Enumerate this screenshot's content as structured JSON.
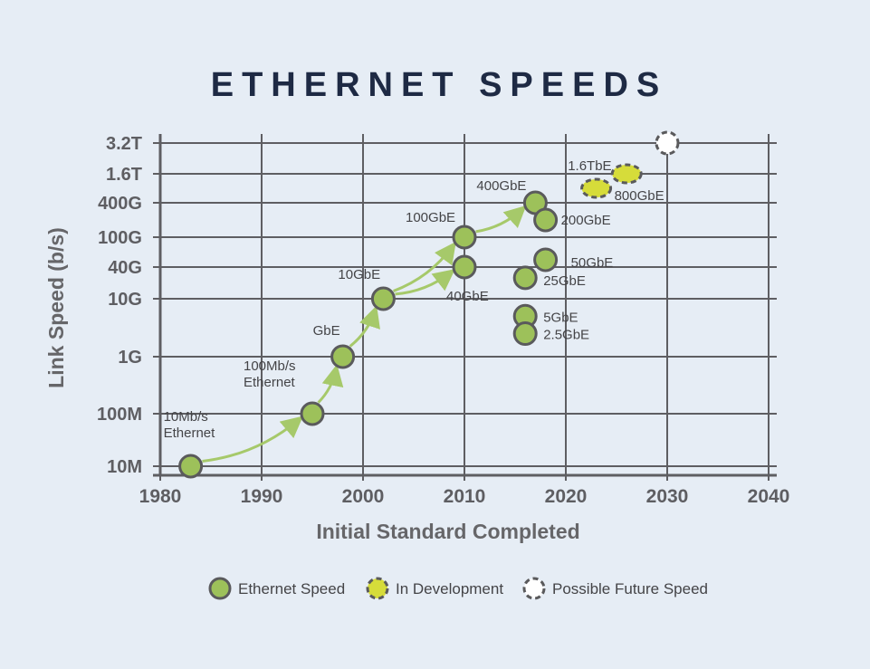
{
  "chart_data": {
    "type": "scatter",
    "title": "ETHERNET SPEEDS",
    "xlabel": "Initial Standard Completed",
    "ylabel": "Link Speed (b/s)",
    "xlim": [
      1980,
      2040
    ],
    "x_ticks": [
      1980,
      1990,
      2000,
      2010,
      2020,
      2030,
      2040
    ],
    "y_scale": "log (non-uniform tick spacing)",
    "y_ticks": [
      {
        "label": "10M",
        "value": 10000000.0
      },
      {
        "label": "100M",
        "value": 100000000.0
      },
      {
        "label": "1G",
        "value": 1000000000.0
      },
      {
        "label": "10G",
        "value": 10000000000.0
      },
      {
        "label": "40G",
        "value": 40000000000.0
      },
      {
        "label": "100G",
        "value": 100000000000.0
      },
      {
        "label": "400G",
        "value": 400000000000.0
      },
      {
        "label": "1.6T",
        "value": 1600000000000.0
      },
      {
        "label": "3.2T",
        "value": 3200000000000.0
      }
    ],
    "grid": true,
    "legend_position": "bottom",
    "series": [
      {
        "name": "Ethernet Speed",
        "color": "#9dc15a",
        "style": "solid",
        "points": [
          {
            "label": "10Mb/s\nEthernet",
            "year": 1983,
            "speed": 10000000.0
          },
          {
            "label": "100Mb/s\nEthernet",
            "year": 1995,
            "speed": 100000000.0
          },
          {
            "label": "GbE",
            "year": 1998,
            "speed": 1000000000.0
          },
          {
            "label": "10GbE",
            "year": 2002,
            "speed": 10000000000.0
          },
          {
            "label": "40GbE",
            "year": 2010,
            "speed": 40000000000.0
          },
          {
            "label": "100GbE",
            "year": 2010,
            "speed": 100000000000.0
          },
          {
            "label": "400GbE",
            "year": 2017,
            "speed": 400000000000.0
          },
          {
            "label": "200GbE",
            "year": 2018,
            "speed": 200000000000.0
          },
          {
            "label": "50GbE",
            "year": 2018,
            "speed": 50000000000.0
          },
          {
            "label": "25GbE",
            "year": 2016,
            "speed": 25000000000.0
          },
          {
            "label": "5GbE",
            "year": 2016,
            "speed": 5000000000.0
          },
          {
            "label": "2.5GbE",
            "year": 2016,
            "speed": 2500000000.0
          }
        ]
      },
      {
        "name": "In Development",
        "color": "#d6dc3a",
        "style": "dashed",
        "points": [
          {
            "label": "800GbE",
            "year": 2023,
            "speed": 800000000000.0
          },
          {
            "label": "1.6TbE",
            "year": 2026,
            "speed": 1600000000000.0
          }
        ]
      },
      {
        "name": "Possible Future Speed",
        "color": "#ffffff",
        "style": "dashed",
        "points": [
          {
            "label": "",
            "year": 2030,
            "speed": 3200000000000.0
          }
        ]
      }
    ],
    "arrows": [
      [
        "10Mb/s\nEthernet",
        "100Mb/s\nEthernet"
      ],
      [
        "100Mb/s\nEthernet",
        "GbE"
      ],
      [
        "GbE",
        "10GbE"
      ],
      [
        "10GbE",
        "100GbE"
      ],
      [
        "10GbE",
        "40GbE"
      ],
      [
        "100GbE",
        "400GbE"
      ]
    ]
  }
}
